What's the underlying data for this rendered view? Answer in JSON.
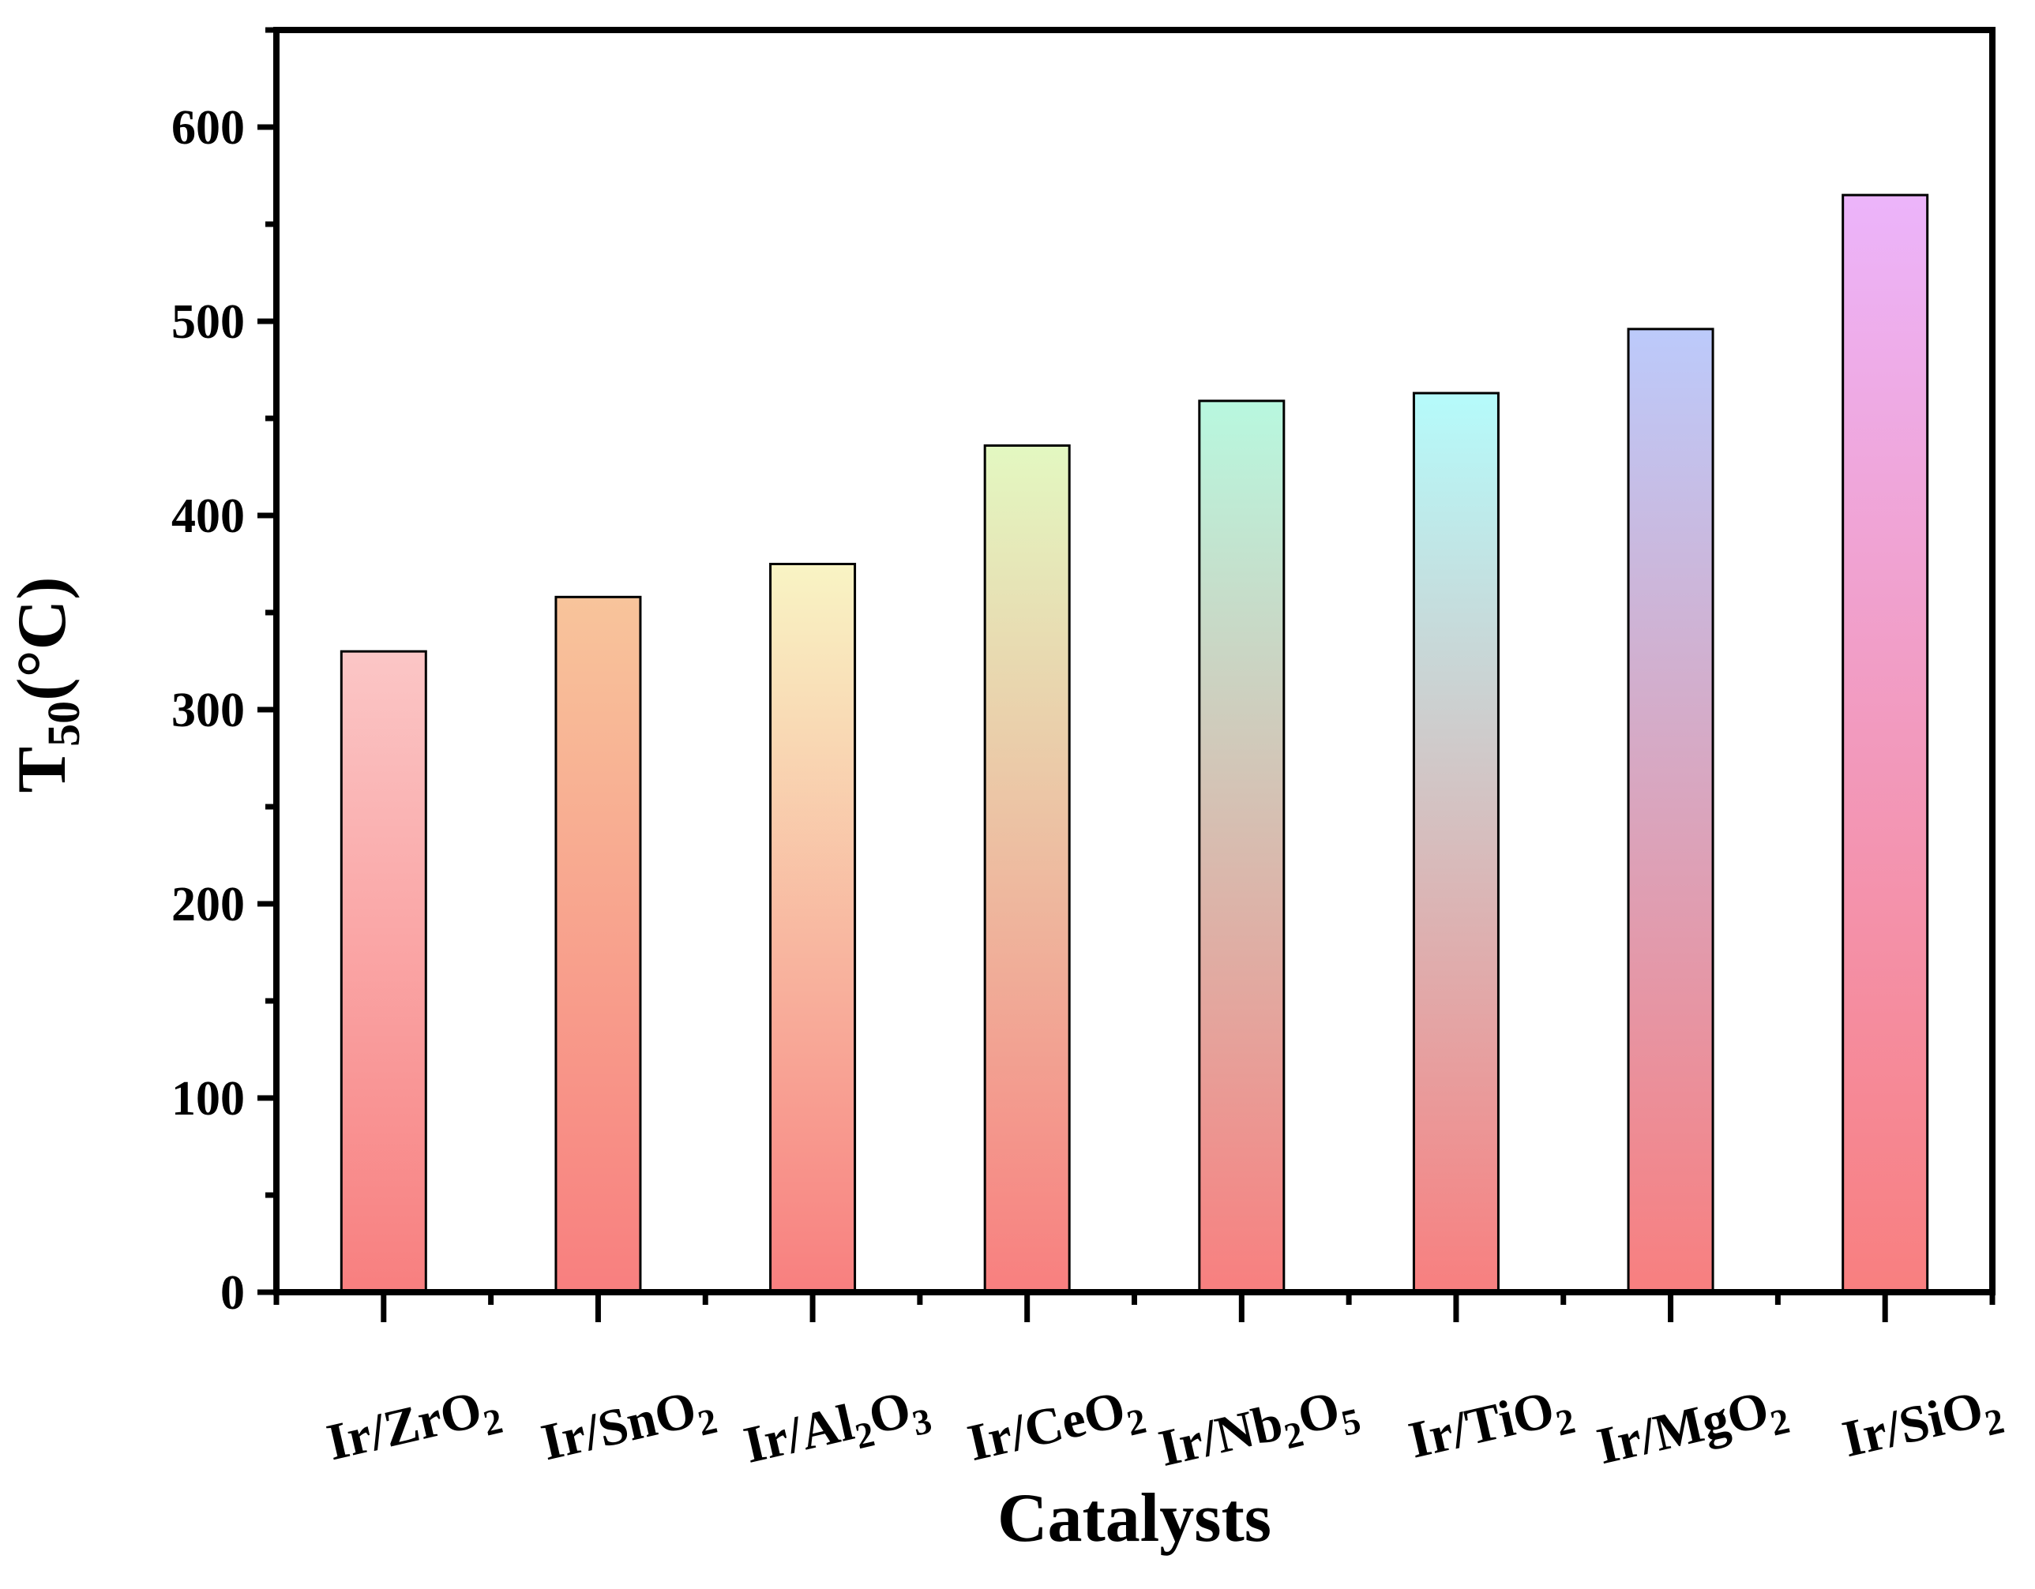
{
  "chart_data": {
    "type": "bar",
    "title": "",
    "xlabel": "Catalysts",
    "ylabel": {
      "base": "T",
      "sub": "50",
      "unit": "(°C)"
    },
    "ylim": [
      0,
      650
    ],
    "yticks": [
      0,
      100,
      200,
      300,
      400,
      500,
      600
    ],
    "categories": [
      {
        "base": "Ir/ZrO",
        "sub": "2"
      },
      {
        "base": "Ir/SnO",
        "sub": "2"
      },
      {
        "base": "Ir/Al",
        "sub": "2",
        "base2": "O",
        "sub2": "3"
      },
      {
        "base": "Ir/CeO",
        "sub": "2"
      },
      {
        "base": "Ir/Nb",
        "sub": "2",
        "base2": "O",
        "sub2": "5"
      },
      {
        "base": "Ir/TiO",
        "sub": "2"
      },
      {
        "base": "Ir/MgO",
        "sub": "2"
      },
      {
        "base": "Ir/SiO",
        "sub": "2"
      }
    ],
    "values": [
      330,
      358,
      375,
      436,
      459,
      463,
      496,
      565
    ],
    "colors": {
      "bottom": "#f87f7f",
      "top": [
        "#fbc6c6",
        "#f8c49b",
        "#f9f4c4",
        "#e3f8c1",
        "#b8f8df",
        "#b5fbfb",
        "#bccafb",
        "#ecb4fb"
      ]
    },
    "grid": false
  }
}
